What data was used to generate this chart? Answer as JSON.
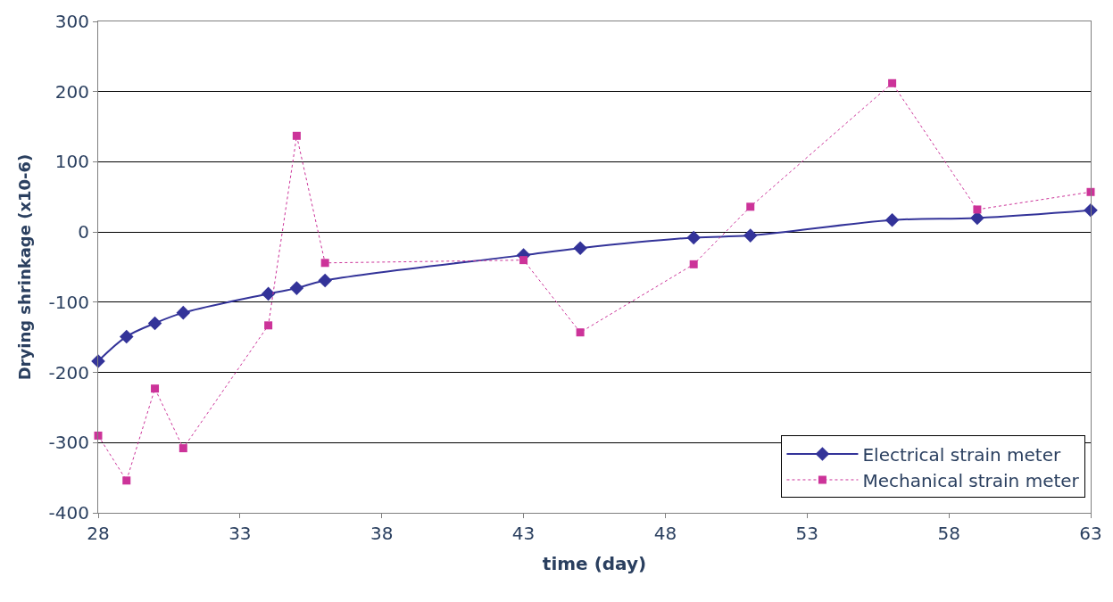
{
  "chart_data": {
    "type": "line",
    "xlabel": "time (day)",
    "ylabel": "Drying shrinkage (x10-6)",
    "x": [
      28,
      29,
      30,
      31,
      34,
      35,
      36,
      43,
      45,
      49,
      51,
      56,
      59,
      63
    ],
    "series": [
      {
        "name": "Electrical strain meter",
        "color": "#333399",
        "marker": "diamond",
        "line_style": "solid",
        "values": [
          -184,
          -149,
          -130,
          -115,
          -88,
          -80,
          -69,
          -33,
          -23,
          -8,
          -5,
          17,
          20,
          31
        ]
      },
      {
        "name": "Mechanical strain meter",
        "color": "#cc3399",
        "marker": "square",
        "line_style": "dotted",
        "values": [
          -290,
          -354,
          -223,
          -308,
          -133,
          137,
          -44,
          -40,
          -143,
          -46,
          36,
          212,
          32,
          57
        ]
      }
    ],
    "xlim": [
      28,
      63
    ],
    "xticks": [
      28,
      33,
      38,
      43,
      48,
      53,
      58,
      63
    ],
    "ylim": [
      -400,
      300
    ],
    "yticks": [
      -400,
      -300,
      -200,
      -100,
      0,
      100,
      200,
      300
    ],
    "grid": "y",
    "legend": "bottom right"
  }
}
